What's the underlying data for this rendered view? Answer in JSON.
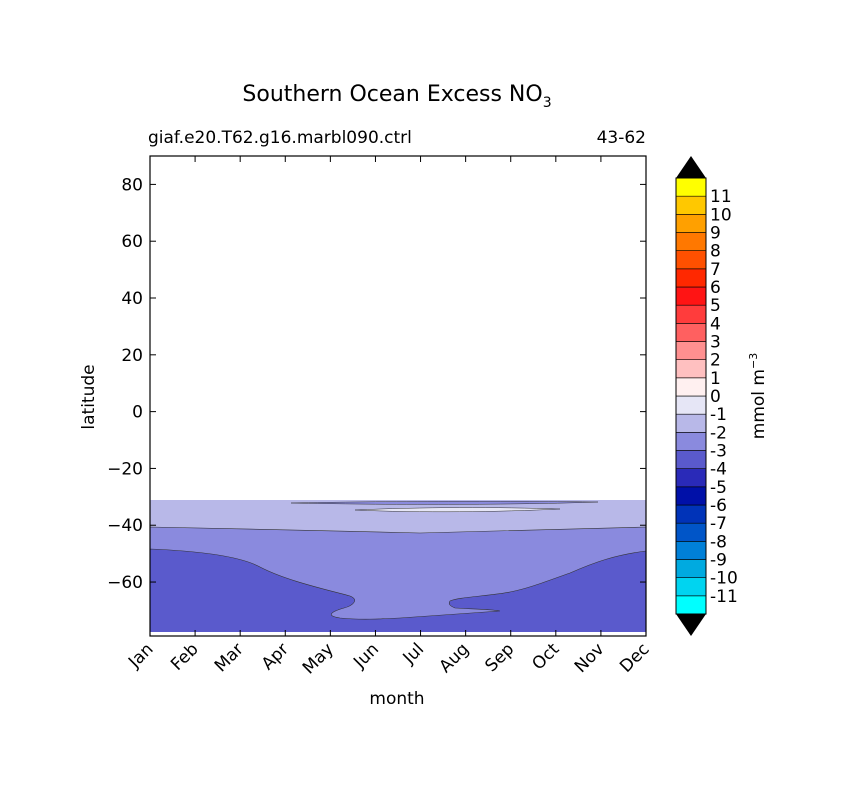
{
  "chart_data": {
    "type": "contour",
    "title": "Southern Ocean Excess NO",
    "title_subscript": "3",
    "subtitle_left": "giaf.e20.T62.g16.marbl090.ctrl",
    "subtitle_right": "43-62",
    "xlabel": "month",
    "ylabel": "latitude",
    "x_ticks": [
      "Jan",
      "Feb",
      "Mar",
      "Apr",
      "May",
      "Jun",
      "Jul",
      "Aug",
      "Sep",
      "Oct",
      "Nov",
      "Dec"
    ],
    "y_ticks": [
      80,
      60,
      40,
      20,
      0,
      -20,
      -40,
      -60
    ],
    "y_tick_labels": [
      "80",
      "60",
      "40",
      "20",
      "0",
      "−20",
      "−40",
      "−60"
    ],
    "xlim": [
      0,
      11
    ],
    "ylim": [
      -79,
      90
    ],
    "data_region_lat": [
      -79,
      -31
    ],
    "colorbar": {
      "label": "mmol m",
      "label_exponent": "−3",
      "levels": [
        -12,
        -11,
        -10,
        -9,
        -8,
        -7,
        -6,
        -5,
        -4,
        -3,
        -2,
        -1,
        0,
        1,
        2,
        3,
        4,
        5,
        6,
        7,
        8,
        9,
        10,
        11,
        12
      ],
      "tick_labels": [
        "-11",
        "-10",
        "-9",
        "-8",
        "-7",
        "-6",
        "-5",
        "-4",
        "-3",
        "-2",
        "-1",
        "0",
        "1",
        "2",
        "3",
        "4",
        "5",
        "6",
        "7",
        "8",
        "9",
        "10",
        "11"
      ],
      "colors": [
        "#00ffff",
        "#00d4f0",
        "#00aae0",
        "#0080d8",
        "#0055c8",
        "#0033b8",
        "#0010a8",
        "#2a2ab8",
        "#5a5acc",
        "#8a8ade",
        "#b8b8e8",
        "#e6e6f6",
        "#fff0f0",
        "#ffc0c0",
        "#ff9090",
        "#ff6060",
        "#ff3c3c",
        "#ff1414",
        "#ff2800",
        "#ff5000",
        "#ff7800",
        "#ffa000",
        "#ffc800",
        "#ffff00"
      ],
      "under_color": "#000000",
      "over_color": "#000000"
    },
    "contours": [
      {
        "level_band": "-2 to -1",
        "color": "#b8b8e8",
        "description": "band from -31 to ~-41 latitude all year"
      },
      {
        "level_band": "-3 to -2",
        "color": "#8a8ade",
        "description": "band below ~-41 to ~-48 (Jan/Dec), deepening to ~-72 in Jun-Aug"
      },
      {
        "level_band": "-4 to -3",
        "color": "#5a5acc",
        "description": "region south of ~-48 in summer months, bottom rim to -79"
      }
    ]
  }
}
